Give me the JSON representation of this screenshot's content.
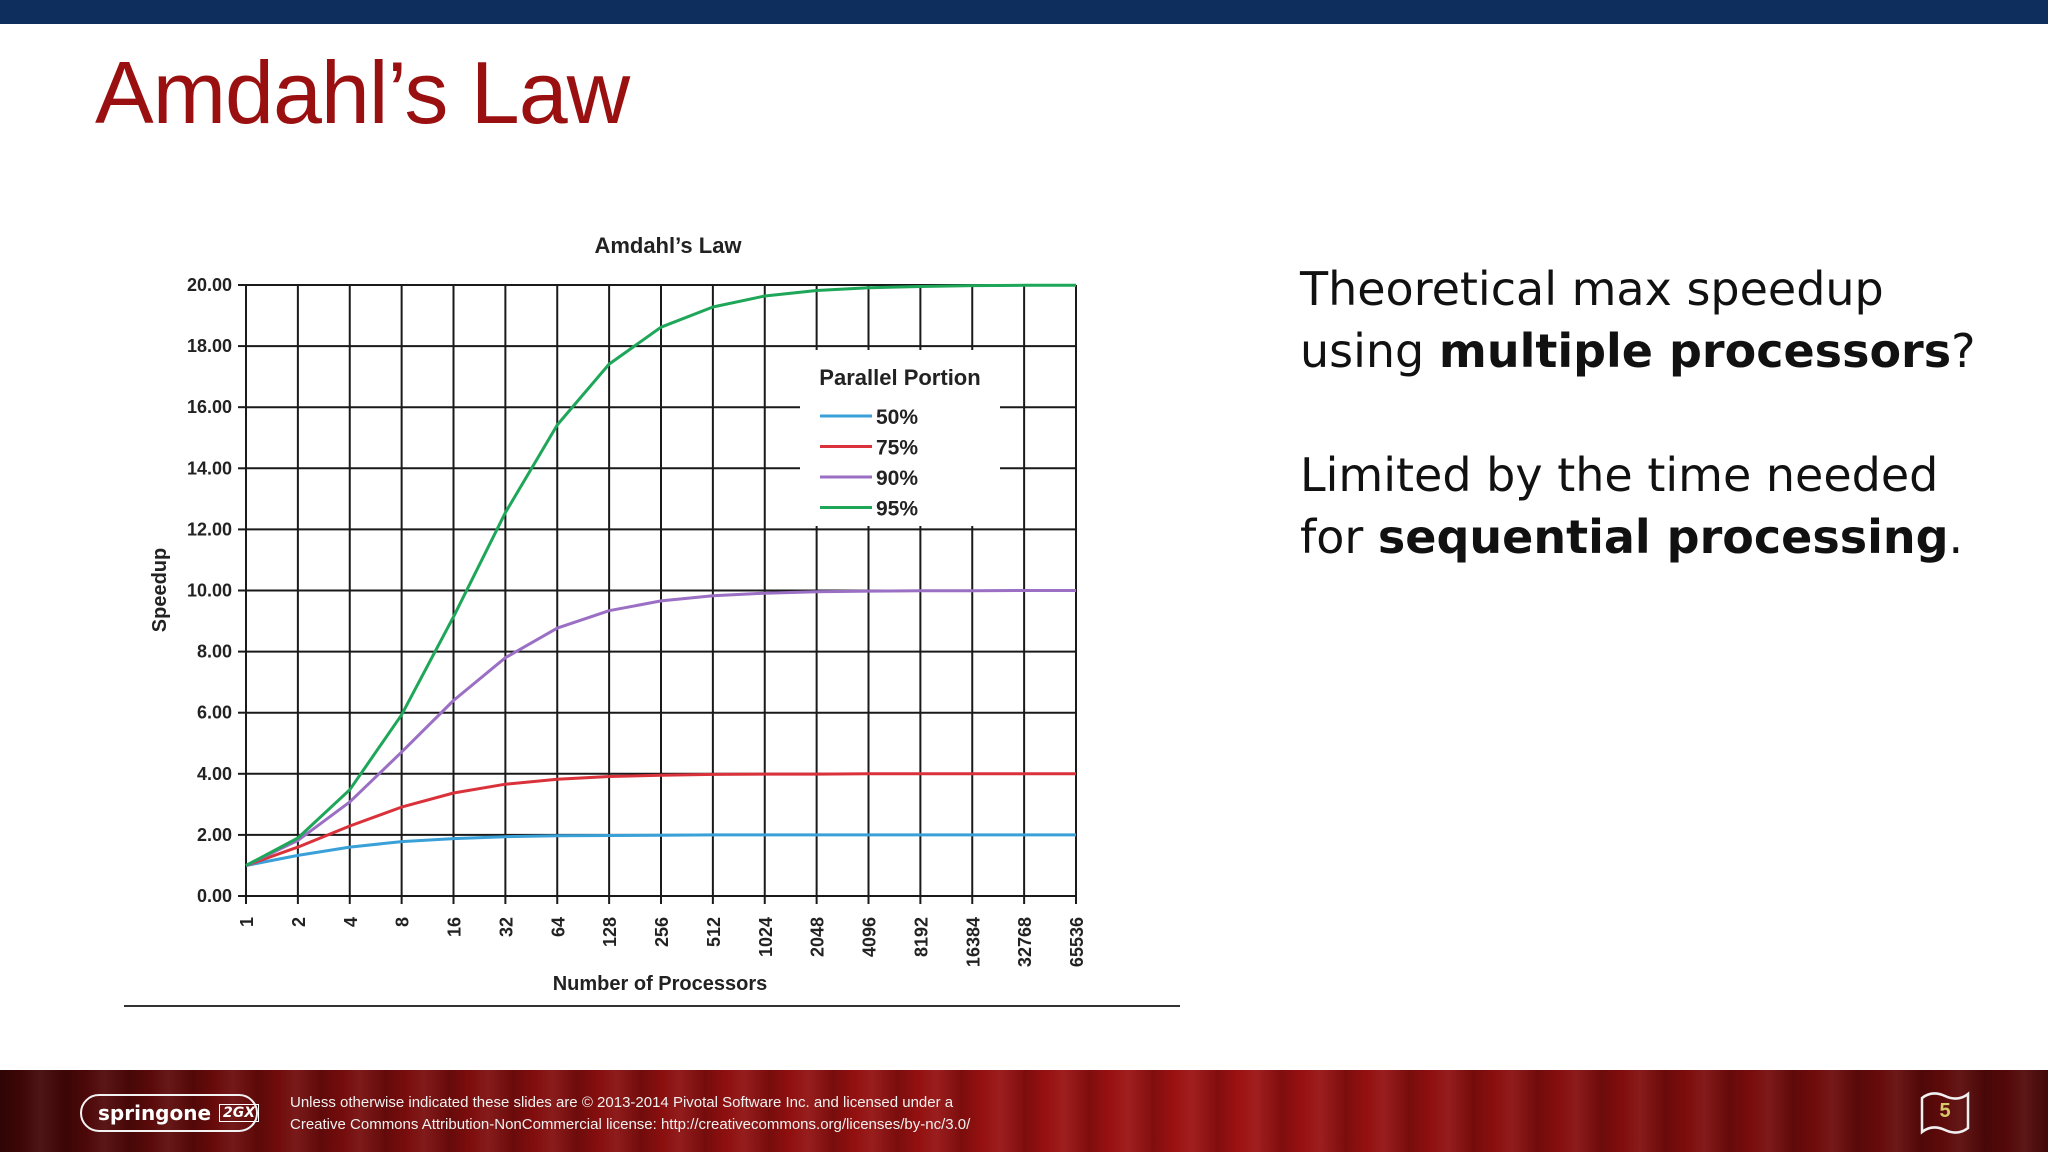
{
  "slide": {
    "title": "Amdahl’s Law",
    "bullets": [
      {
        "parts": [
          {
            "text": "Theoretical max speedup using ",
            "bold": false
          },
          {
            "text": "multiple processors",
            "bold": true
          },
          {
            "text": "?",
            "bold": false
          }
        ]
      },
      {
        "parts": [
          {
            "text": "Limited by the time needed for ",
            "bold": false
          },
          {
            "text": "sequential processing",
            "bold": true
          },
          {
            "text": ".",
            "bold": false
          }
        ]
      }
    ],
    "footer": {
      "logo_text": "springone",
      "logo_badge": "2GX",
      "copyright_line1": "Unless otherwise indicated these slides are © 2013-2014 Pivotal Software Inc. and licensed under a",
      "copyright_line2": "Creative Commons Attribution-NonCommercial license: http://creativecommons.org/licenses/by-nc/3.0/",
      "page_number": "5"
    },
    "colors": {
      "title": "#9a1010",
      "top_bar": "#0e2f5e"
    }
  },
  "chart_data": {
    "type": "line",
    "title": "Amdahl’s Law",
    "xlabel": "Number of Processors",
    "ylabel": "Speedup",
    "x_scale": "log2",
    "x": [
      1,
      2,
      4,
      8,
      16,
      32,
      64,
      128,
      256,
      512,
      1024,
      2048,
      4096,
      8192,
      16384,
      32768,
      65536
    ],
    "y_ticks": [
      "0.00",
      "2.00",
      "4.00",
      "6.00",
      "8.00",
      "10.00",
      "12.00",
      "14.00",
      "16.00",
      "18.00",
      "20.00"
    ],
    "ylim": [
      0,
      20
    ],
    "grid": true,
    "legend_title": "Parallel Portion",
    "legend_position": "upper-right",
    "series": [
      {
        "name": "50%",
        "color": "#3aa0d8",
        "values": [
          1.0,
          1.33,
          1.6,
          1.78,
          1.88,
          1.94,
          1.97,
          1.98,
          1.99,
          2.0,
          2.0,
          2.0,
          2.0,
          2.0,
          2.0,
          2.0,
          2.0
        ]
      },
      {
        "name": "75%",
        "color": "#d9323a",
        "values": [
          1.0,
          1.6,
          2.29,
          2.91,
          3.37,
          3.66,
          3.82,
          3.91,
          3.95,
          3.98,
          3.99,
          3.99,
          4.0,
          4.0,
          4.0,
          4.0,
          4.0
        ]
      },
      {
        "name": "90%",
        "color": "#9a6fc4",
        "values": [
          1.0,
          1.82,
          3.08,
          4.71,
          6.4,
          7.8,
          8.77,
          9.34,
          9.66,
          9.83,
          9.91,
          9.96,
          9.98,
          9.99,
          9.99,
          10.0,
          10.0
        ]
      },
      {
        "name": "95%",
        "color": "#1ea659",
        "values": [
          1.0,
          1.9,
          3.48,
          5.93,
          9.14,
          12.55,
          15.42,
          17.41,
          18.62,
          19.28,
          19.64,
          19.82,
          19.91,
          19.95,
          19.98,
          19.99,
          19.99
        ]
      }
    ]
  }
}
